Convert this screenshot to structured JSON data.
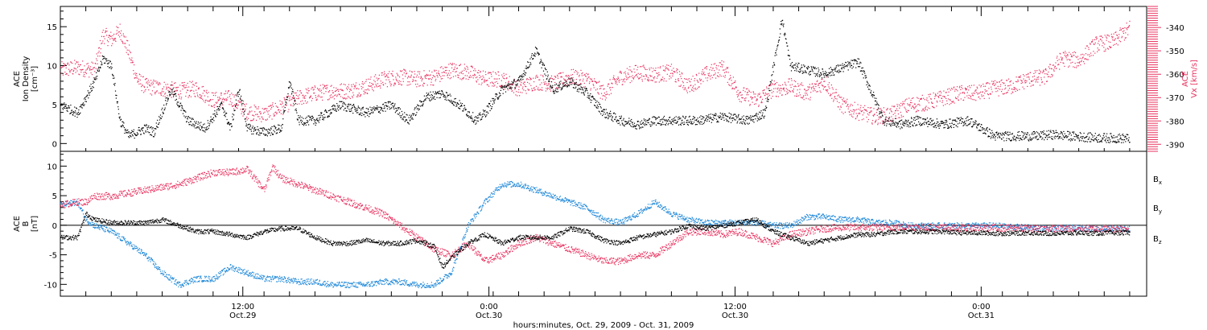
{
  "colors": {
    "black": "#000000",
    "red": "#e8325f",
    "blue": "#1a86d8"
  },
  "chart_data": [
    {
      "type": "scatter",
      "panel": "top",
      "ylabel_lines": [
        "ACE",
        "Ion Density",
        "[cm⁻³]"
      ],
      "ylim": [
        -1,
        17.6
      ],
      "yticks": [
        0,
        5,
        10,
        15
      ],
      "right_axis": {
        "label": "ACE Vx [km/s]",
        "lines": [
          "ACE",
          "Vx [km/s]"
        ],
        "ylim": [
          -393,
          -331
        ],
        "ticks": [
          -340,
          -350,
          -360,
          -370,
          -380,
          -390
        ],
        "color": "#e8325f"
      },
      "series": [
        {
          "color": "#000000",
          "axis": "left",
          "t": [
            0,
            2,
            4,
            5,
            6,
            7,
            8,
            9,
            10,
            11,
            13,
            15,
            17,
            19,
            20,
            21,
            22,
            24,
            26,
            27,
            28,
            30,
            33,
            36,
            39,
            41,
            43,
            45,
            47,
            49,
            50,
            52,
            54,
            56,
            58,
            60,
            62,
            64,
            66,
            68,
            70,
            72,
            75,
            78,
            81,
            83,
            85,
            86,
            90,
            94,
            97,
            99,
            101,
            104,
            107,
            110,
            112,
            114,
            115,
            117,
            119,
            122,
            126
          ],
          "v": [
            5,
            4,
            8,
            11,
            10,
            3,
            1,
            1.5,
            2,
            1.5,
            7,
            3,
            2,
            5,
            2,
            7,
            2,
            1.5,
            2,
            8,
            3,
            3,
            5,
            4,
            5,
            3,
            6,
            6.5,
            5,
            3,
            4,
            7,
            8,
            12,
            7,
            8,
            6.5,
            4,
            3,
            2.5,
            3,
            3,
            3,
            3.5,
            3,
            4,
            16,
            10,
            9,
            10.5,
            3,
            2.5,
            3,
            2.5,
            3,
            1,
            1,
            1,
            1,
            1.2,
            1,
            0.8,
            0.7
          ]
        },
        {
          "color": "#e8325f",
          "axis": "right",
          "t": [
            0,
            2,
            4,
            5,
            6,
            7,
            8,
            9,
            10,
            12,
            14,
            16,
            18,
            20,
            22,
            24,
            26,
            28,
            30,
            32,
            34,
            36,
            38,
            40,
            42,
            44,
            46,
            48,
            50,
            52,
            54,
            56,
            58,
            60,
            62,
            64,
            66,
            68,
            70,
            72,
            74,
            76,
            78,
            80,
            82,
            84,
            85,
            86,
            88,
            90,
            92,
            94,
            96,
            98,
            100,
            102,
            104,
            106,
            108,
            110,
            112,
            114,
            116,
            118,
            120,
            122,
            124,
            126
          ],
          "v": [
            -358,
            -357,
            -358,
            -343,
            -345,
            -341,
            -350,
            -362,
            -365,
            -366,
            -367,
            -366,
            -371,
            -370,
            -376,
            -377,
            -374,
            -370,
            -368,
            -367,
            -367,
            -365,
            -362,
            -361,
            -362,
            -361,
            -358,
            -359,
            -362,
            -362,
            -366,
            -363,
            -364,
            -361,
            -362,
            -368,
            -361,
            -359,
            -360,
            -359,
            -365,
            -360,
            -357,
            -368,
            -371,
            -366,
            -366,
            -365,
            -368,
            -363,
            -373,
            -376,
            -378,
            -377,
            -373,
            -372,
            -370,
            -368,
            -368,
            -366,
            -365,
            -362,
            -361,
            -353,
            -354,
            -347,
            -346,
            -340
          ]
        }
      ]
    },
    {
      "type": "scatter",
      "panel": "bottom",
      "ylabel_lines": [
        "ACE",
        "B",
        "[nT]"
      ],
      "ylim": [
        -12,
        12.5
      ],
      "yticks": [
        -10,
        -5,
        0,
        5,
        10
      ],
      "zero_line": true,
      "legend": [
        "Bx",
        "By",
        "Bz"
      ],
      "series": [
        {
          "name": "Bx",
          "color": "#000000",
          "t": [
            0,
            2,
            3,
            4,
            6,
            8,
            10,
            12,
            14,
            16,
            18,
            20,
            22,
            24,
            26,
            28,
            30,
            32,
            34,
            36,
            38,
            40,
            42,
            44,
            45,
            46,
            48,
            50,
            52,
            54,
            56,
            58,
            60,
            62,
            64,
            66,
            68,
            70,
            72,
            74,
            76,
            78,
            80,
            82,
            84,
            86,
            88,
            90,
            92,
            94,
            96,
            98,
            100,
            102,
            104,
            106,
            108,
            110,
            112,
            114,
            116,
            118,
            120,
            122,
            124,
            126
          ],
          "v": [
            -2,
            -2,
            2,
            1,
            0.5,
            0.5,
            0.5,
            1,
            0,
            -1,
            -1,
            -1.5,
            -2,
            -1,
            -0.5,
            -0.5,
            -2,
            -3,
            -3,
            -2.5,
            -3,
            -3,
            -2.5,
            -3.5,
            -7,
            -5.5,
            -3,
            -1.5,
            -3,
            -2,
            -2,
            -2,
            -0.5,
            -1,
            -2.5,
            -3,
            -2,
            -1.5,
            -1,
            0,
            -0.5,
            0,
            0.5,
            1,
            -1,
            -2,
            -3,
            -2.5,
            -2,
            -1.5,
            -1.5,
            -1,
            -1,
            -1,
            -1,
            -1.2,
            -1.2,
            -1.3,
            -1.3,
            -1.2,
            -1.3,
            -1.3,
            -1.2,
            -1.3,
            -1.2,
            -1.2
          ]
        },
        {
          "name": "By",
          "color": "#1a86d8",
          "t": [
            0,
            2,
            3,
            4,
            6,
            8,
            10,
            12,
            14,
            16,
            18,
            20,
            22,
            24,
            26,
            28,
            30,
            32,
            34,
            36,
            38,
            40,
            42,
            44,
            46,
            47,
            48,
            50,
            52,
            54,
            56,
            58,
            60,
            62,
            64,
            66,
            68,
            70,
            72,
            74,
            76,
            78,
            80,
            82,
            84,
            86,
            88,
            90,
            92,
            94,
            96,
            98,
            100,
            102,
            104,
            106,
            108,
            110,
            112,
            114,
            116,
            118,
            120,
            122,
            124,
            126
          ],
          "v": [
            3.5,
            4,
            1,
            0,
            -1,
            -3,
            -5,
            -8,
            -10,
            -9,
            -9,
            -7,
            -8,
            -9,
            -9,
            -9.5,
            -9.5,
            -10,
            -10,
            -10,
            -9.5,
            -9.5,
            -10,
            -10,
            -8,
            -4,
            0,
            4,
            7,
            7,
            6,
            5,
            4,
            3,
            1,
            0.5,
            2,
            4,
            2,
            1,
            0.5,
            0.5,
            0.5,
            0.5,
            0,
            0,
            1.5,
            1.5,
            1,
            1,
            0.5,
            0.5,
            0,
            0,
            0,
            0,
            0,
            0,
            -0.2,
            -0.3,
            -0.5,
            -0.4,
            -0.4,
            -0.5,
            -0.5,
            -0.6
          ]
        },
        {
          "name": "Bz",
          "color": "#e8325f",
          "t": [
            0,
            2,
            3,
            4,
            6,
            8,
            10,
            12,
            14,
            16,
            18,
            20,
            22,
            24,
            25,
            26,
            28,
            30,
            32,
            34,
            36,
            38,
            40,
            42,
            44,
            46,
            48,
            50,
            52,
            54,
            56,
            58,
            60,
            62,
            64,
            66,
            68,
            70,
            72,
            74,
            76,
            78,
            80,
            82,
            84,
            86,
            88,
            90,
            92,
            94,
            96,
            98,
            100,
            102,
            104,
            106,
            108,
            110,
            112,
            114,
            116,
            118,
            120,
            122,
            124,
            126
          ],
          "v": [
            3.5,
            4,
            4,
            5,
            5,
            5.5,
            6,
            6.5,
            7,
            8,
            9,
            9,
            9.5,
            6,
            10,
            8,
            7,
            6,
            5,
            4,
            3,
            2,
            0,
            -2,
            -4,
            -5,
            -3,
            -6,
            -5,
            -3,
            -2,
            -3,
            -4,
            -5,
            -6,
            -6,
            -5,
            -5,
            -3,
            -1,
            -1,
            -1.5,
            -1,
            -2,
            -3,
            -1.5,
            -1,
            -0.5,
            -0.3,
            -0.3,
            -0.3,
            -0.3,
            -0.2,
            -0.3,
            -0.3,
            -0.4,
            -0.4,
            -0.4,
            -0.4,
            -0.5,
            -0.5,
            -0.5,
            -0.5,
            -0.5,
            -0.5,
            -0.5
          ]
        }
      ]
    }
  ],
  "time_axis": {
    "xlabel": "hours:minutes, Oct. 29, 2009 - Oct. 31, 2009",
    "range_hours": [
      0,
      128
    ],
    "ticks": [
      {
        "t": 21.5,
        "line1": "12:00",
        "line2": "Oct.29"
      },
      {
        "t": 50.5,
        "line1": "0:00",
        "line2": "Oct.30"
      },
      {
        "t": 79.5,
        "line1": "12:00",
        "line2": "Oct.30"
      },
      {
        "t": 108.5,
        "line1": "0:00",
        "line2": "Oct.31"
      }
    ]
  },
  "legend_labels": {
    "bx": "Bx",
    "by": "By",
    "bz": "Bz"
  }
}
